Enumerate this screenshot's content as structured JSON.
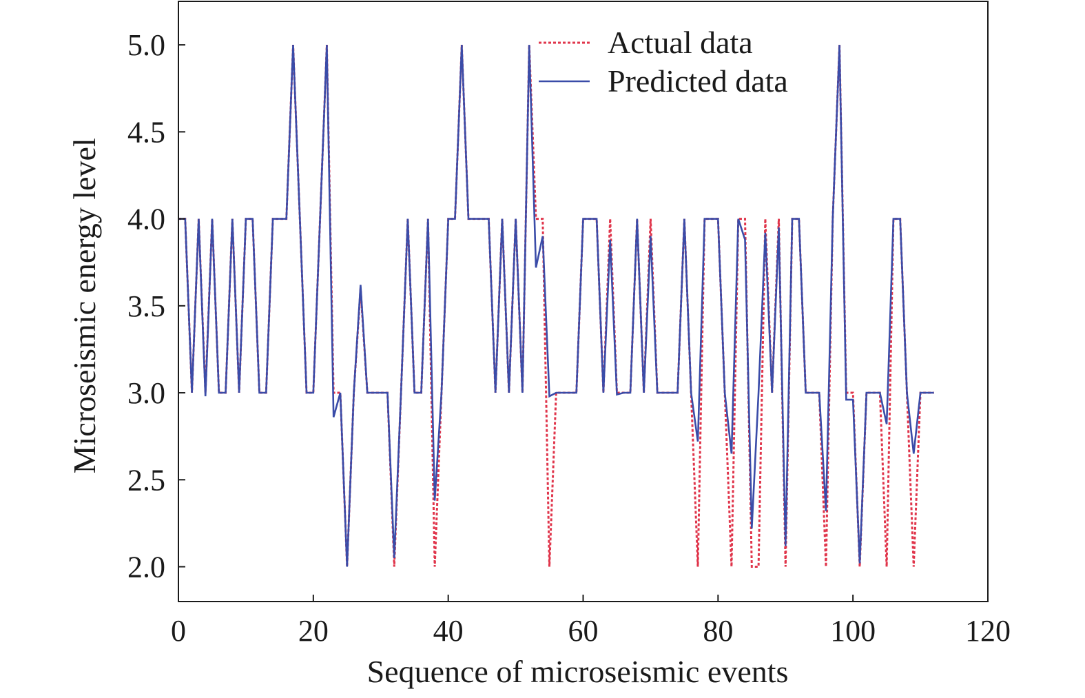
{
  "chart_data": {
    "type": "line",
    "xlabel": "Sequence of microseismic events",
    "ylabel": "Microseismic energy level",
    "xlim": [
      0,
      120
    ],
    "ylim": [
      1.8,
      5.25
    ],
    "xticks": [
      0,
      20,
      40,
      60,
      80,
      100,
      120
    ],
    "yticks": [
      2.0,
      2.5,
      3.0,
      3.5,
      4.0,
      4.5,
      5.0
    ],
    "xtick_labels": [
      "0",
      "20",
      "40",
      "60",
      "80",
      "100",
      "120"
    ],
    "ytick_labels": [
      "2.0",
      "2.5",
      "3.0",
      "3.5",
      "4.0",
      "4.5",
      "5.0"
    ],
    "grid": false,
    "legend_position": "top-right",
    "x": [
      0,
      1,
      2,
      3,
      4,
      5,
      6,
      7,
      8,
      9,
      10,
      11,
      12,
      13,
      14,
      15,
      16,
      17,
      18,
      19,
      20,
      21,
      22,
      23,
      24,
      25,
      26,
      27,
      28,
      29,
      30,
      31,
      32,
      33,
      34,
      35,
      36,
      37,
      38,
      39,
      40,
      41,
      42,
      43,
      44,
      45,
      46,
      47,
      48,
      49,
      50,
      51,
      52,
      53,
      54,
      55,
      56,
      57,
      58,
      59,
      60,
      61,
      62,
      63,
      64,
      65,
      66,
      67,
      68,
      69,
      70,
      71,
      72,
      73,
      74,
      75,
      76,
      77,
      78,
      79,
      80,
      81,
      82,
      83,
      84,
      85,
      86,
      87,
      88,
      89,
      90,
      91,
      92,
      93,
      94,
      95,
      96,
      97,
      98,
      99,
      100,
      101,
      102,
      103,
      104,
      105,
      106,
      107,
      108,
      109,
      110,
      111,
      112
    ],
    "series": [
      {
        "name": "Actual data",
        "color": "#e0354b",
        "style": "dotted",
        "values": [
          4,
          4,
          3,
          4,
          3,
          4,
          3,
          3,
          4,
          3,
          4,
          4,
          3,
          3,
          4,
          4,
          4,
          5,
          4,
          3,
          3,
          4,
          5,
          3,
          3,
          2,
          3,
          3.6,
          3,
          3,
          3,
          3,
          2,
          3,
          4,
          3,
          3,
          4,
          2,
          3,
          4,
          4,
          5,
          4,
          4,
          4,
          4,
          3,
          4,
          3,
          4,
          3,
          5,
          4,
          4,
          2,
          3,
          3,
          3,
          3,
          4,
          4,
          4,
          3,
          4,
          3,
          3,
          3,
          4,
          3,
          4,
          3,
          3,
          3,
          3,
          4,
          3,
          2,
          4,
          4,
          4,
          3,
          2,
          4,
          4,
          2,
          2,
          4,
          3,
          4,
          2,
          4,
          4,
          3,
          3,
          3,
          2,
          4,
          5,
          3,
          3,
          2,
          3,
          3,
          3,
          2,
          4,
          4,
          3,
          2,
          3,
          3,
          3
        ]
      },
      {
        "name": "Predicted data",
        "color": "#3a4ca8",
        "style": "solid",
        "values": [
          4,
          4,
          3,
          4,
          2.98,
          4,
          3,
          3,
          4,
          3,
          4,
          4,
          3,
          3,
          4,
          4,
          4,
          5,
          4,
          3,
          3,
          4,
          5,
          2.86,
          3,
          2,
          3,
          3.62,
          3,
          3,
          3,
          3,
          2.05,
          3,
          4,
          3,
          3,
          4,
          2.38,
          3,
          4,
          4,
          5,
          4,
          4,
          4,
          4,
          3,
          4,
          3,
          4,
          3,
          5,
          3.72,
          3.9,
          2.98,
          3,
          3,
          3,
          3,
          4,
          4,
          4,
          3,
          3.88,
          2.99,
          3,
          3,
          4,
          3,
          3.9,
          3,
          3,
          3,
          3,
          4,
          3,
          2.72,
          4,
          4,
          4,
          3,
          2.65,
          4,
          3.88,
          2.22,
          3,
          3.92,
          3,
          3.95,
          2.12,
          4,
          4,
          3,
          3,
          3,
          2.32,
          4,
          5,
          2.96,
          2.96,
          2.02,
          3,
          3,
          3,
          2.82,
          4,
          4,
          3,
          2.65,
          3,
          3,
          3
        ]
      }
    ]
  }
}
